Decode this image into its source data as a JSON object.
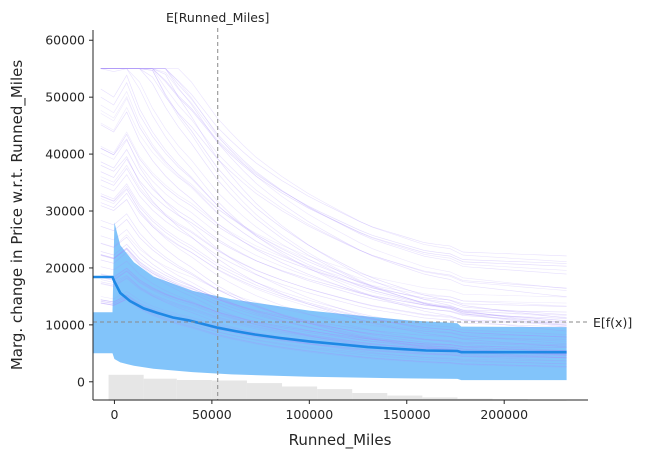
{
  "chart_data": {
    "type": "line",
    "xlabel": "Runned_Miles",
    "ylabel": "Marg. change in Price w.r.t. Runned_Miles",
    "xlim": [
      -11000,
      243000
    ],
    "ylim": [
      -3200,
      61800
    ],
    "x_ticks": [
      0,
      50000,
      100000,
      150000,
      200000
    ],
    "y_ticks": [
      0,
      10000,
      20000,
      30000,
      40000,
      50000,
      60000
    ],
    "x_tick_labels": [
      "0",
      "50000",
      "100000",
      "150000",
      "200000"
    ],
    "y_tick_labels": [
      "0",
      "10000",
      "20000",
      "30000",
      "40000",
      "50000",
      "60000"
    ],
    "expected_x_label": "E[Runned_Miles]",
    "expected_x": 53000,
    "expected_fx_label": "E[f(x)]",
    "expected_fx": 10500,
    "grid": false,
    "colors": {
      "mean_line": "#1e88e5",
      "band": "#82c4fa",
      "ice_lines": "#a78bfa",
      "histogram": "#e6e6e6",
      "reference": "#8a8a8a"
    },
    "series": [
      {
        "name": "",
        "x": [
          -11000,
          -1000,
          0,
          3000,
          8000,
          15000,
          22000,
          30000,
          38000,
          45000,
          53000,
          62000,
          72000,
          85000,
          100000,
          115000,
          130000,
          145000,
          160000,
          176000,
          178000,
          200000,
          232000
        ],
        "values": [
          18400,
          18400,
          17600,
          15600,
          14200,
          12900,
          12100,
          11300,
          10800,
          10200,
          9500,
          8900,
          8300,
          7700,
          7100,
          6600,
          6100,
          5800,
          5500,
          5400,
          5200,
          5200,
          5200
        ]
      }
    ],
    "band": {
      "x": [
        -11000,
        -1000,
        0,
        3000,
        10000,
        20000,
        40000,
        60000,
        100000,
        150000,
        176000,
        178000,
        232000
      ],
      "upper": [
        12200,
        12200,
        28000,
        24000,
        21000,
        18500,
        16000,
        14500,
        12500,
        10800,
        10300,
        9700,
        9600
      ],
      "lower": [
        5000,
        5000,
        4000,
        3400,
        2800,
        2300,
        1700,
        1300,
        900,
        600,
        500,
        300,
        300
      ]
    },
    "histogram": {
      "bin_edges": [
        -3000,
        15000,
        32000,
        50000,
        68000,
        86000,
        104000,
        122000,
        140000,
        158000,
        176000,
        194000,
        212000,
        232000
      ],
      "relative_heights": [
        1.0,
        0.85,
        0.8,
        0.78,
        0.68,
        0.55,
        0.45,
        0.3,
        0.2,
        0.13,
        0.08,
        0.06,
        0.05
      ]
    }
  }
}
